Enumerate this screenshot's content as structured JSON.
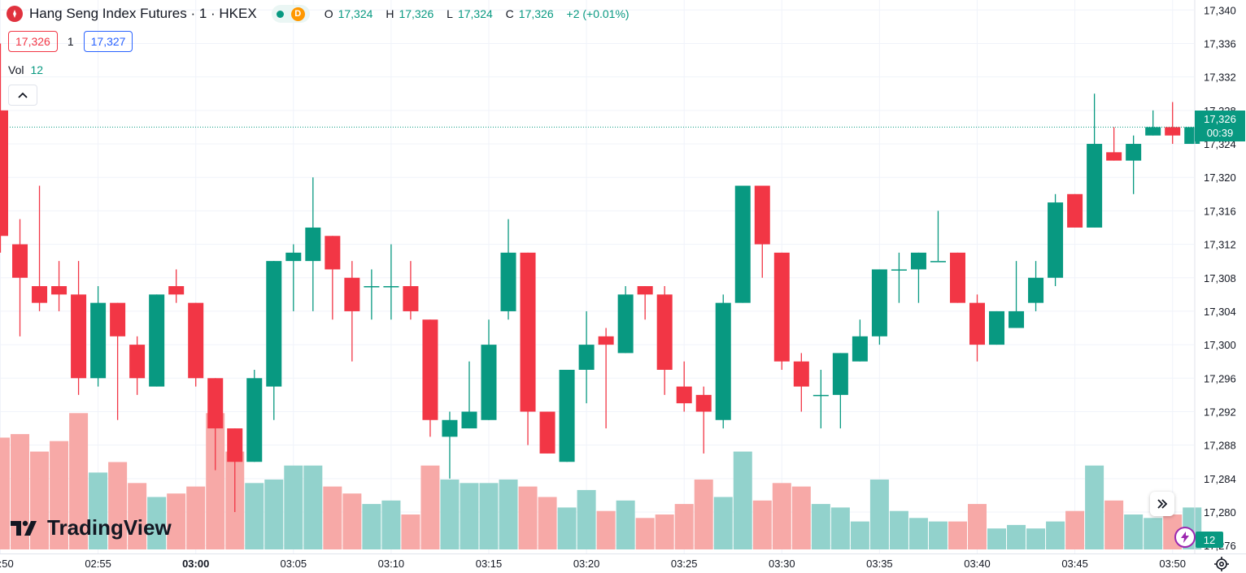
{
  "header": {
    "symbol": "Hang Seng Index Futures · 1 · HKEX",
    "badge_letter": "D",
    "o_label": "O",
    "o_value": "17,324",
    "h_label": "H",
    "h_value": "17,326",
    "l_label": "L",
    "l_value": "17,324",
    "c_label": "C",
    "c_value": "17,326",
    "change": "+2 (+0.01%)"
  },
  "order": {
    "bid": "17,326",
    "qty": "1",
    "ask": "17,327"
  },
  "volume_legend": {
    "label": "Vol",
    "value": "12"
  },
  "price_label": {
    "price": "17,326",
    "countdown": "00:39"
  },
  "volume_badge": "12",
  "watermark": "TradingView",
  "colors": {
    "up": "#089981",
    "down": "#f23645",
    "vol_up": "#92d2cc",
    "vol_down": "#f7a9a7",
    "grid": "#f0f3fa"
  },
  "chart_data": {
    "type": "candlestick",
    "y_ticks": [
      "17,276",
      "17,280",
      "17,284",
      "17,288",
      "17,292",
      "17,296",
      "17,300",
      "17,304",
      "17,308",
      "17,312",
      "17,316",
      "17,320",
      "17,324",
      "17,328",
      "17,332",
      "17,336",
      "17,340"
    ],
    "x_ticks": [
      "02:50",
      "02:55",
      "03:00",
      "03:05",
      "03:10",
      "03:15",
      "03:20",
      "03:25",
      "03:30",
      "03:35",
      "03:40",
      "03:45",
      "03:50"
    ],
    "x_tick_bold": "03:00",
    "ylim": [
      17275,
      17341
    ],
    "last_price": 17326,
    "candles": [
      {
        "t": "02:50",
        "o": 17328,
        "h": 17336,
        "l": 17311,
        "c": 17313,
        "v": 32
      },
      {
        "t": "02:51",
        "o": 17312,
        "h": 17315,
        "l": 17301,
        "c": 17308,
        "v": 33
      },
      {
        "t": "02:52",
        "o": 17307,
        "h": 17319,
        "l": 17304,
        "c": 17305,
        "v": 28
      },
      {
        "t": "02:53",
        "o": 17307,
        "h": 17310,
        "l": 17304,
        "c": 17306,
        "v": 31
      },
      {
        "t": "02:54",
        "o": 17306,
        "h": 17310,
        "l": 17294,
        "c": 17296,
        "v": 39
      },
      {
        "t": "02:55",
        "o": 17296,
        "h": 17307,
        "l": 17295,
        "c": 17305,
        "v": 22
      },
      {
        "t": "02:56",
        "o": 17305,
        "h": 17305,
        "l": 17291,
        "c": 17301,
        "v": 25
      },
      {
        "t": "02:57",
        "o": 17300,
        "h": 17301,
        "l": 17294,
        "c": 17296,
        "v": 19
      },
      {
        "t": "02:58",
        "o": 17295,
        "h": 17306,
        "l": 17295,
        "c": 17306,
        "v": 15
      },
      {
        "t": "02:59",
        "o": 17307,
        "h": 17309,
        "l": 17305,
        "c": 17306,
        "v": 16
      },
      {
        "t": "03:00",
        "o": 17305,
        "h": 17305,
        "l": 17295,
        "c": 17296,
        "v": 18
      },
      {
        "t": "03:01",
        "o": 17296,
        "h": 17296,
        "l": 17285,
        "c": 17290,
        "v": 39
      },
      {
        "t": "03:02",
        "o": 17290,
        "h": 17290,
        "l": 17280,
        "c": 17286,
        "v": 28
      },
      {
        "t": "03:03",
        "o": 17286,
        "h": 17297,
        "l": 17286,
        "c": 17296,
        "v": 19
      },
      {
        "t": "03:04",
        "o": 17295,
        "h": 17310,
        "l": 17291,
        "c": 17310,
        "v": 20
      },
      {
        "t": "03:05",
        "o": 17310,
        "h": 17312,
        "l": 17304,
        "c": 17311,
        "v": 24
      },
      {
        "t": "03:06",
        "o": 17310,
        "h": 17320,
        "l": 17304,
        "c": 17314,
        "v": 24
      },
      {
        "t": "03:07",
        "o": 17313,
        "h": 17313,
        "l": 17303,
        "c": 17309,
        "v": 18
      },
      {
        "t": "03:08",
        "o": 17308,
        "h": 17310,
        "l": 17298,
        "c": 17304,
        "v": 16
      },
      {
        "t": "03:09",
        "o": 17307,
        "h": 17309,
        "l": 17303,
        "c": 17307,
        "v": 13
      },
      {
        "t": "03:10",
        "o": 17307,
        "h": 17312,
        "l": 17303,
        "c": 17307,
        "v": 14
      },
      {
        "t": "03:11",
        "o": 17307,
        "h": 17310,
        "l": 17303,
        "c": 17304,
        "v": 10
      },
      {
        "t": "03:12",
        "o": 17303,
        "h": 17303,
        "l": 17289,
        "c": 17291,
        "v": 24
      },
      {
        "t": "03:13",
        "o": 17289,
        "h": 17292,
        "l": 17284,
        "c": 17291,
        "v": 20
      },
      {
        "t": "03:14",
        "o": 17290,
        "h": 17298,
        "l": 17290,
        "c": 17292,
        "v": 19
      },
      {
        "t": "03:15",
        "o": 17291,
        "h": 17303,
        "l": 17291,
        "c": 17300,
        "v": 19
      },
      {
        "t": "03:16",
        "o": 17304,
        "h": 17315,
        "l": 17303,
        "c": 17311,
        "v": 20
      },
      {
        "t": "03:17",
        "o": 17311,
        "h": 17311,
        "l": 17288,
        "c": 17292,
        "v": 18
      },
      {
        "t": "03:18",
        "o": 17292,
        "h": 17292,
        "l": 17287,
        "c": 17287,
        "v": 15
      },
      {
        "t": "03:19",
        "o": 17286,
        "h": 17297,
        "l": 17286,
        "c": 17297,
        "v": 12
      },
      {
        "t": "03:20",
        "o": 17297,
        "h": 17304,
        "l": 17293,
        "c": 17300,
        "v": 17
      },
      {
        "t": "03:21",
        "o": 17301,
        "h": 17302,
        "l": 17290,
        "c": 17300,
        "v": 11
      },
      {
        "t": "03:22",
        "o": 17299,
        "h": 17307,
        "l": 17299,
        "c": 17306,
        "v": 14
      },
      {
        "t": "03:23",
        "o": 17307,
        "h": 17307,
        "l": 17303,
        "c": 17306,
        "v": 9
      },
      {
        "t": "03:24",
        "o": 17306,
        "h": 17307,
        "l": 17294,
        "c": 17297,
        "v": 10
      },
      {
        "t": "03:25",
        "o": 17295,
        "h": 17298,
        "l": 17292,
        "c": 17293,
        "v": 13
      },
      {
        "t": "03:26",
        "o": 17294,
        "h": 17295,
        "l": 17287,
        "c": 17292,
        "v": 20
      },
      {
        "t": "03:27",
        "o": 17291,
        "h": 17306,
        "l": 17290,
        "c": 17305,
        "v": 15
      },
      {
        "t": "03:28",
        "o": 17305,
        "h": 17319,
        "l": 17305,
        "c": 17319,
        "v": 28
      },
      {
        "t": "03:29",
        "o": 17319,
        "h": 17319,
        "l": 17308,
        "c": 17312,
        "v": 14
      },
      {
        "t": "03:30",
        "o": 17311,
        "h": 17311,
        "l": 17297,
        "c": 17298,
        "v": 19
      },
      {
        "t": "03:31",
        "o": 17298,
        "h": 17299,
        "l": 17292,
        "c": 17295,
        "v": 18
      },
      {
        "t": "03:32",
        "o": 17294,
        "h": 17297,
        "l": 17290,
        "c": 17294,
        "v": 13
      },
      {
        "t": "03:33",
        "o": 17294,
        "h": 17299,
        "l": 17290,
        "c": 17299,
        "v": 12
      },
      {
        "t": "03:34",
        "o": 17298,
        "h": 17303,
        "l": 17298,
        "c": 17301,
        "v": 8
      },
      {
        "t": "03:35",
        "o": 17301,
        "h": 17309,
        "l": 17300,
        "c": 17309,
        "v": 20
      },
      {
        "t": "03:36",
        "o": 17309,
        "h": 17311,
        "l": 17305,
        "c": 17309,
        "v": 11
      },
      {
        "t": "03:37",
        "o": 17309,
        "h": 17311,
        "l": 17305,
        "c": 17311,
        "v": 9
      },
      {
        "t": "03:38",
        "o": 17310,
        "h": 17316,
        "l": 17310,
        "c": 17310,
        "v": 8
      },
      {
        "t": "03:39",
        "o": 17311,
        "h": 17311,
        "l": 17305,
        "c": 17305,
        "v": 8
      },
      {
        "t": "03:40",
        "o": 17305,
        "h": 17306,
        "l": 17298,
        "c": 17300,
        "v": 13
      },
      {
        "t": "03:41",
        "o": 17300,
        "h": 17304,
        "l": 17300,
        "c": 17304,
        "v": 6
      },
      {
        "t": "03:42",
        "o": 17302,
        "h": 17310,
        "l": 17302,
        "c": 17304,
        "v": 7
      },
      {
        "t": "03:43",
        "o": 17305,
        "h": 17310,
        "l": 17304,
        "c": 17308,
        "v": 6
      },
      {
        "t": "03:44",
        "o": 17308,
        "h": 17318,
        "l": 17307,
        "c": 17317,
        "v": 8
      },
      {
        "t": "03:45",
        "o": 17318,
        "h": 17318,
        "l": 17314,
        "c": 17314,
        "v": 11
      },
      {
        "t": "03:46",
        "o": 17314,
        "h": 17330,
        "l": 17314,
        "c": 17324,
        "v": 24
      },
      {
        "t": "03:47",
        "o": 17323,
        "h": 17326,
        "l": 17322,
        "c": 17322,
        "v": 14
      },
      {
        "t": "03:48",
        "o": 17322,
        "h": 17325,
        "l": 17318,
        "c": 17324,
        "v": 10
      },
      {
        "t": "03:49",
        "o": 17325,
        "h": 17328,
        "l": 17325,
        "c": 17326,
        "v": 9
      },
      {
        "t": "03:50",
        "o": 17326,
        "h": 17329,
        "l": 17324,
        "c": 17325,
        "v": 10
      },
      {
        "t": "03:51",
        "o": 17324,
        "h": 17326,
        "l": 17324,
        "c": 17326,
        "v": 12
      }
    ]
  }
}
